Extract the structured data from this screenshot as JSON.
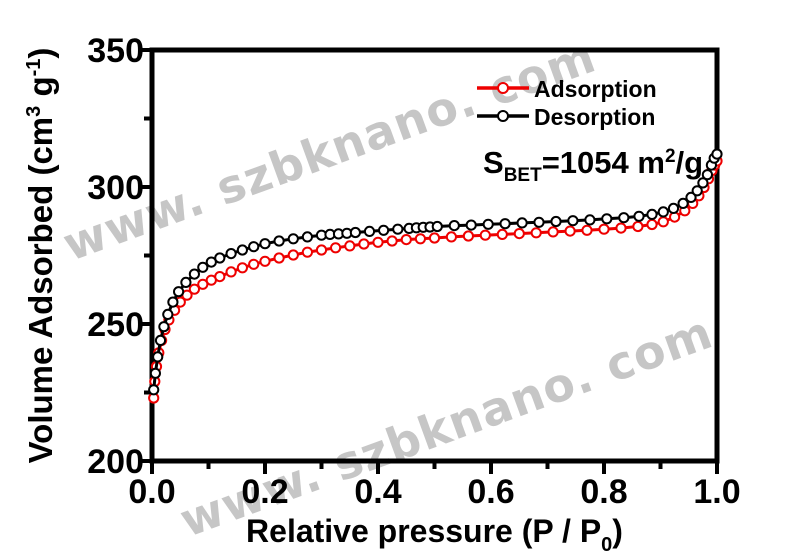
{
  "watermark": {
    "text": "www. szbknano. com",
    "color": "#c6c6c6"
  },
  "styles": {
    "background": "#ffffff",
    "axis_color": "#000000",
    "adsorption_color": "#ee0000",
    "desorption_color": "#000000",
    "marker_fill": "#ffffff"
  },
  "chart_data": {
    "type": "line",
    "title": "",
    "xlabel": "Relative pressure (P / P0)",
    "ylabel": "Volume Adsorbed (cm3 g-1)",
    "xlabel_rich": [
      {
        "t": "Relative pressure (P / P",
        "s": "n"
      },
      {
        "t": "0",
        "s": "sub"
      },
      {
        "t": ")",
        "s": "n"
      }
    ],
    "ylabel_rich": [
      {
        "t": "Volume Adsorbed (cm",
        "s": "n"
      },
      {
        "t": "3",
        "s": "sup"
      },
      {
        "t": " g",
        "s": "n"
      },
      {
        "t": "-1",
        "s": "sup"
      },
      {
        "t": ")",
        "s": "n"
      }
    ],
    "annotation": "SBET=1054 m2/g",
    "annotation_rich": [
      {
        "t": "S",
        "s": "n"
      },
      {
        "t": "BET",
        "s": "sub"
      },
      {
        "t": "=1054 m",
        "s": "n"
      },
      {
        "t": "2",
        "s": "sup"
      },
      {
        "t": "/g",
        "s": "n"
      }
    ],
    "xlim": [
      0,
      1
    ],
    "ylim": [
      200,
      350
    ],
    "x_major_ticks": [
      0,
      0.2,
      0.4,
      0.6,
      0.8,
      1.0
    ],
    "x_tick_labels": [
      "0.0",
      "0.2",
      "0.4",
      "0.6",
      "0.8",
      "1.0"
    ],
    "x_minor_ticks": [
      0.1,
      0.3,
      0.5,
      0.7,
      0.9
    ],
    "y_major_ticks": [
      200,
      250,
      300,
      350
    ],
    "y_tick_labels": [
      "200",
      "250",
      "300",
      "350"
    ],
    "y_minor_ticks": [
      225,
      275,
      325
    ],
    "grid": false,
    "legend_position": "upper right inside",
    "legend": [
      {
        "label": "Adsorption",
        "color": "#ee0000"
      },
      {
        "label": "Desorption",
        "color": "#000000"
      }
    ],
    "series": [
      {
        "name": "Adsorption",
        "color": "#ee0000",
        "marker": "open-circle",
        "points": [
          [
            0.003,
            223
          ],
          [
            0.005,
            229
          ],
          [
            0.008,
            234.5
          ],
          [
            0.012,
            239.5
          ],
          [
            0.017,
            244
          ],
          [
            0.023,
            248
          ],
          [
            0.03,
            251.5
          ],
          [
            0.04,
            255
          ],
          [
            0.05,
            258
          ],
          [
            0.062,
            260.5
          ],
          [
            0.075,
            262.7
          ],
          [
            0.09,
            264.5
          ],
          [
            0.105,
            266
          ],
          [
            0.12,
            267.3
          ],
          [
            0.14,
            269
          ],
          [
            0.16,
            270.5
          ],
          [
            0.18,
            271.8
          ],
          [
            0.2,
            272.9
          ],
          [
            0.225,
            274.1
          ],
          [
            0.25,
            275.2
          ],
          [
            0.275,
            276.2
          ],
          [
            0.3,
            277
          ],
          [
            0.325,
            277.8
          ],
          [
            0.35,
            278.5
          ],
          [
            0.375,
            279.2
          ],
          [
            0.4,
            279.8
          ],
          [
            0.425,
            280.3
          ],
          [
            0.45,
            280.8
          ],
          [
            0.475,
            281.1
          ],
          [
            0.5,
            281.4
          ],
          [
            0.53,
            281.8
          ],
          [
            0.56,
            282.1
          ],
          [
            0.59,
            282.4
          ],
          [
            0.62,
            282.7
          ],
          [
            0.65,
            283
          ],
          [
            0.68,
            283.3
          ],
          [
            0.71,
            283.6
          ],
          [
            0.74,
            283.9
          ],
          [
            0.77,
            284.2
          ],
          [
            0.8,
            284.6
          ],
          [
            0.83,
            285
          ],
          [
            0.86,
            285.6
          ],
          [
            0.885,
            286.3
          ],
          [
            0.905,
            287.3
          ],
          [
            0.925,
            289
          ],
          [
            0.943,
            291.3
          ],
          [
            0.957,
            294
          ],
          [
            0.968,
            296.8
          ],
          [
            0.977,
            299.8
          ],
          [
            0.985,
            303
          ],
          [
            0.991,
            306
          ],
          [
            0.996,
            308
          ],
          [
            1.0,
            309.5
          ]
        ]
      },
      {
        "name": "Desorption",
        "color": "#000000",
        "marker": "open-circle",
        "points": [
          [
            0.003,
            226
          ],
          [
            0.006,
            232
          ],
          [
            0.01,
            238
          ],
          [
            0.015,
            244
          ],
          [
            0.021,
            249
          ],
          [
            0.028,
            253.5
          ],
          [
            0.037,
            258
          ],
          [
            0.047,
            261.8
          ],
          [
            0.06,
            265.2
          ],
          [
            0.075,
            268.2
          ],
          [
            0.09,
            270.7
          ],
          [
            0.105,
            272.6
          ],
          [
            0.12,
            274.1
          ],
          [
            0.14,
            275.7
          ],
          [
            0.16,
            277
          ],
          [
            0.18,
            278.2
          ],
          [
            0.2,
            279.3
          ],
          [
            0.225,
            280.3
          ],
          [
            0.25,
            281.1
          ],
          [
            0.275,
            281.8
          ],
          [
            0.3,
            282.4
          ],
          [
            0.315,
            282.7
          ],
          [
            0.33,
            282.9
          ],
          [
            0.345,
            283.1
          ],
          [
            0.36,
            283.4
          ],
          [
            0.385,
            283.8
          ],
          [
            0.41,
            284.2
          ],
          [
            0.435,
            284.6
          ],
          [
            0.455,
            284.9
          ],
          [
            0.468,
            285.1
          ],
          [
            0.48,
            285.3
          ],
          [
            0.492,
            285.4
          ],
          [
            0.505,
            285.6
          ],
          [
            0.535,
            285.9
          ],
          [
            0.565,
            286.1
          ],
          [
            0.595,
            286.4
          ],
          [
            0.625,
            286.6
          ],
          [
            0.655,
            286.9
          ],
          [
            0.685,
            287.1
          ],
          [
            0.715,
            287.4
          ],
          [
            0.745,
            287.7
          ],
          [
            0.775,
            288
          ],
          [
            0.805,
            288.4
          ],
          [
            0.835,
            288.8
          ],
          [
            0.862,
            289.3
          ],
          [
            0.885,
            290
          ],
          [
            0.905,
            290.9
          ],
          [
            0.923,
            292.2
          ],
          [
            0.94,
            294
          ],
          [
            0.954,
            296.2
          ],
          [
            0.965,
            298.6
          ],
          [
            0.975,
            301.5
          ],
          [
            0.983,
            304.5
          ],
          [
            0.99,
            308
          ],
          [
            0.995,
            310.5
          ],
          [
            1.0,
            312
          ]
        ]
      }
    ]
  }
}
